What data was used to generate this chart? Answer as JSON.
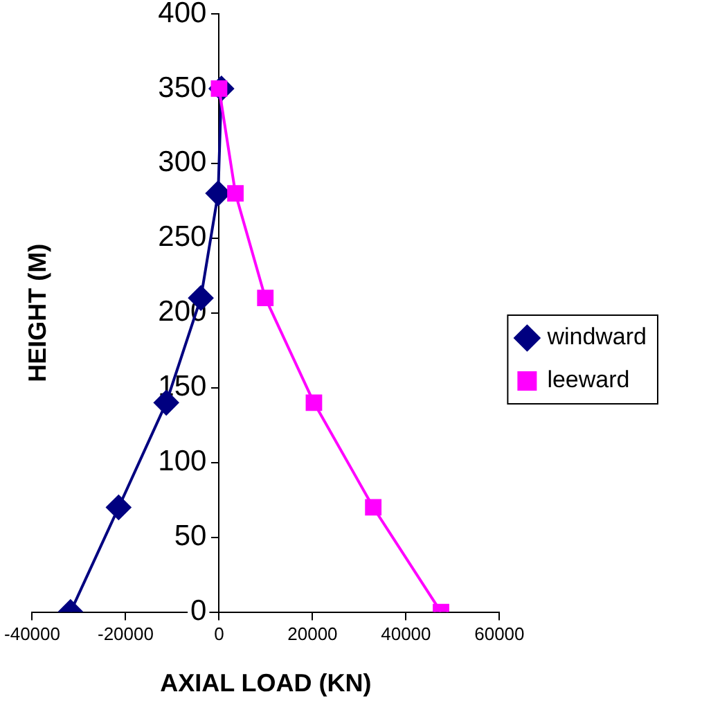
{
  "chart_data": {
    "type": "line",
    "xlabel": "AXIAL LOAD (KN)",
    "ylabel": "HEIGHT (M)",
    "series": [
      {
        "name": "windward",
        "color": "#000080",
        "marker": "diamond",
        "x": [
          -31800,
          -21500,
          -11300,
          -3900,
          -200,
          500
        ],
        "values": [
          0,
          70,
          140,
          210,
          280,
          350
        ]
      },
      {
        "name": "leeward",
        "color": "#ff00ff",
        "marker": "square",
        "x": [
          47500,
          33000,
          20300,
          9900,
          3500,
          0
        ],
        "values": [
          0,
          70,
          140,
          210,
          280,
          350
        ]
      }
    ],
    "xlim": [
      -40000,
      60000
    ],
    "xticks": [
      -40000,
      -20000,
      0,
      20000,
      40000,
      60000
    ],
    "ylim": [
      0,
      400
    ],
    "yticks": [
      0,
      50,
      100,
      150,
      200,
      250,
      300,
      350,
      400
    ],
    "grid": false,
    "legend": "right",
    "line_style": "solid"
  }
}
